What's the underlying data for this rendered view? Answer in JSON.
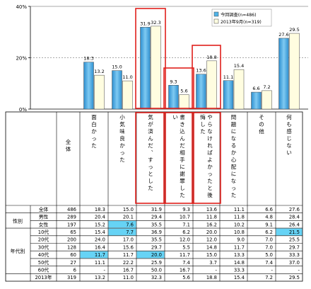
{
  "chart_data": {
    "type": "bar",
    "ylim": [
      0,
      40
    ],
    "yticks": [
      "0%",
      "20%",
      "40%"
    ],
    "categories": [
      "面白かった",
      "小気味良かった",
      "気が済んだ、すっとした",
      "書き込んだ相手に謝罪したい",
      "やらなければよかったと後悔した",
      "問題になるか心配になった",
      "その他",
      "何も感じない"
    ],
    "highlighted": [
      2,
      3,
      4
    ],
    "series": [
      {
        "name": "今回調査(n=486)",
        "color": "#4fb3e8",
        "values": [
          18.3,
          15.0,
          31.9,
          9.3,
          13.6,
          11.1,
          6.6,
          27.6
        ]
      },
      {
        "name": "2013年9月(n=319)",
        "color": "#fffde0",
        "values": [
          13.2,
          11.0,
          32.3,
          5.6,
          18.8,
          15.4,
          7.2,
          29.5
        ]
      }
    ],
    "legend_position": "top-right",
    "table": {
      "total_label": "全体",
      "rows": [
        {
          "group": "",
          "label": "全体",
          "n": "486",
          "values": [
            "18.3",
            "15.0",
            "31.9",
            "9.3",
            "13.6",
            "11.1",
            "6.6",
            "27.6"
          ],
          "hl": []
        },
        {
          "group": "性別",
          "label": "男性",
          "n": "289",
          "values": [
            "20.4",
            "20.1",
            "29.4",
            "10.7",
            "11.8",
            "11.8",
            "4.8",
            "28.4"
          ],
          "hl": []
        },
        {
          "group": "",
          "label": "女性",
          "n": "197",
          "values": [
            "15.2",
            "7.6",
            "35.5",
            "7.1",
            "16.2",
            "10.2",
            "9.1",
            "26.4"
          ],
          "hl": [
            1
          ]
        },
        {
          "group": "年代別",
          "label": "10代",
          "n": "65",
          "values": [
            "15.4",
            "7.7",
            "36.9",
            "6.2",
            "20.0",
            "10.8",
            "6.2",
            "21.5"
          ],
          "hl": [
            1,
            7
          ]
        },
        {
          "group": "",
          "label": "20代",
          "n": "200",
          "values": [
            "24.0",
            "17.0",
            "35.5",
            "12.0",
            "12.0",
            "9.0",
            "7.0",
            "25.5"
          ],
          "hl": []
        },
        {
          "group": "",
          "label": "30代",
          "n": "128",
          "values": [
            "16.4",
            "15.6",
            "29.7",
            "5.5",
            "14.8",
            "11.7",
            "7.0",
            "29.7"
          ],
          "hl": []
        },
        {
          "group": "",
          "label": "40代",
          "n": "60",
          "values": [
            "11.7",
            "11.7",
            "20.0",
            "11.7",
            "15.0",
            "13.3",
            "5.0",
            "33.3"
          ],
          "hl": [
            0,
            2
          ]
        },
        {
          "group": "",
          "label": "50代",
          "n": "27",
          "values": [
            "11.1",
            "22.2",
            "25.9",
            "7.4",
            "3.7",
            "14.8",
            "7.4",
            "37.0"
          ],
          "hl": []
        },
        {
          "group": "",
          "label": "60代",
          "n": "6",
          "values": [
            "-",
            "16.7",
            "50.0",
            "16.7",
            "-",
            "33.3",
            "-",
            "-"
          ],
          "hl": []
        },
        {
          "group": "",
          "label": "2013年",
          "n": "319",
          "values": [
            "13.2",
            "11.0",
            "32.3",
            "5.6",
            "18.8",
            "15.4",
            "7.2",
            "29.5"
          ],
          "hl": []
        }
      ]
    }
  }
}
